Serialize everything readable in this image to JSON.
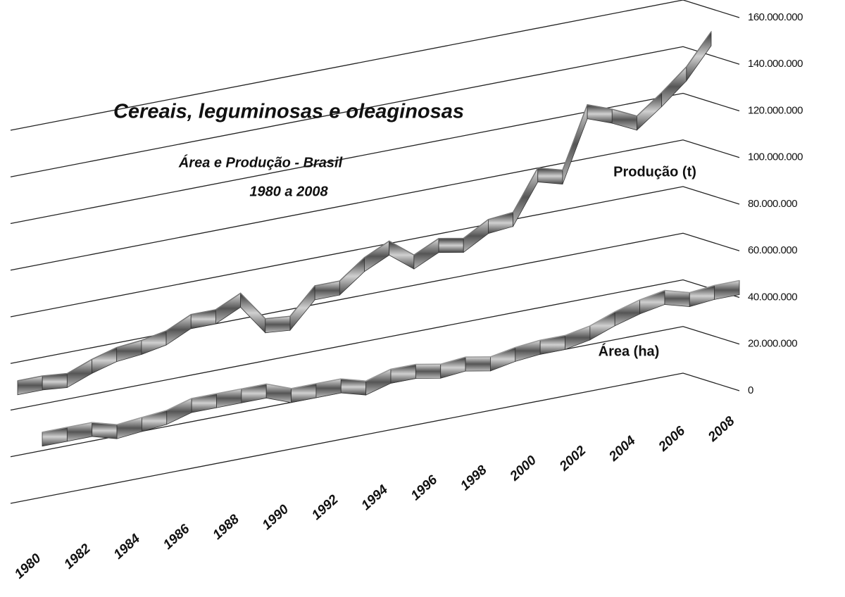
{
  "chart_data": {
    "type": "ribbon3d",
    "title": "Cereais, leguminosas e oleaginosas",
    "subtitle": "Área e Produção - Brasil",
    "period": "1980 a 2008",
    "categories": [
      "1980",
      null,
      "1982",
      null,
      "1984",
      null,
      "1986",
      null,
      "1988",
      null,
      "1990",
      null,
      "1992",
      null,
      "1994",
      null,
      "1996",
      null,
      "1998",
      null,
      "2000",
      null,
      "2002",
      null,
      "2004",
      null,
      "2006",
      null,
      "2008"
    ],
    "series": [
      {
        "name": "Produção (t)",
        "color": "#777777",
        "values": [
          52000000,
          52000000,
          51000000,
          55000000,
          58000000,
          59000000,
          61000000,
          66000000,
          66000000,
          71000000,
          58000000,
          57000000,
          68000000,
          68000000,
          76000000,
          81000000,
          73000000,
          78000000,
          76000000,
          82000000,
          83000000,
          100000000,
          97000000,
          123000000,
          119000000,
          114000000,
          122000000,
          131000000,
          144000000
        ]
      },
      {
        "name": "Área (ha)",
        "color": "#999999",
        "values": [
          40000000,
          40000000,
          40000000,
          37000000,
          38000000,
          39000000,
          42000000,
          42000000,
          42000000,
          42000000,
          38000000,
          38000000,
          38000000,
          35000000,
          38000000,
          38000000,
          36000000,
          37000000,
          35000000,
          37000000,
          38000000,
          38000000,
          40000000,
          44000000,
          47000000,
          49000000,
          46000000,
          47000000,
          47000000
        ]
      }
    ],
    "ylim": [
      0,
      160000000
    ],
    "yticks": [
      0,
      {
        "value": 20000000,
        "label": "20.000.000"
      },
      {
        "value": 40000000,
        "label": "40.000.000"
      },
      {
        "value": 60000000,
        "label": "60.000.000"
      },
      {
        "value": 80000000,
        "label": "80.000.000"
      },
      {
        "value": 100000000,
        "label": "100.000.000"
      },
      {
        "value": 120000000,
        "label": "120.000.000"
      },
      {
        "value": 140000000,
        "label": "140.000.000"
      },
      {
        "value": 160000000,
        "label": "160.000.000"
      }
    ],
    "grid": true
  }
}
